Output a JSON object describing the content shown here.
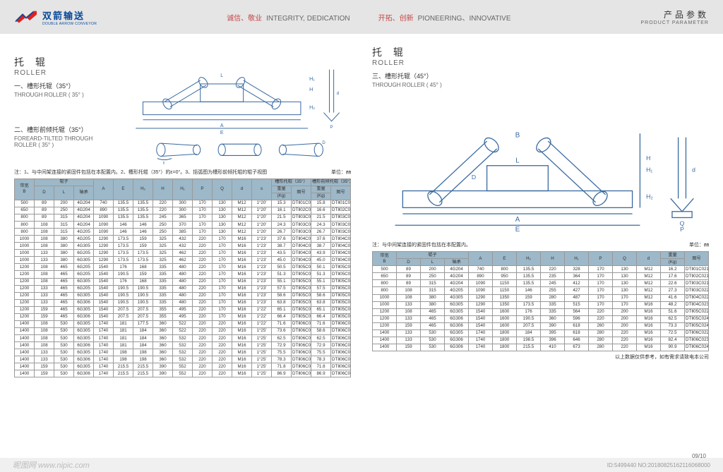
{
  "header": {
    "logo_cn": "双箭输送",
    "logo_en": "DOUBLE ARROW CONVEYOR",
    "slogan1_cn": "诚信、敬业",
    "slogan1_en": "INTEGRITY, DEDICATION",
    "slogan2_cn": "开拓、创新",
    "slogan2_en": "PIONEERING、INNOVATIVE",
    "param_cn": "产品参数",
    "param_en": "PRODUCT PARAMETER"
  },
  "left": {
    "title_cn": "托 辊",
    "title_en": "ROLLER",
    "sub1_cn": "一、槽形托辊（35°）",
    "sub1_en": "THROUGH ROLLER ( 35° )",
    "sub2_cn": "二、槽形前倾托辊（35°）",
    "sub2_en": "FOREARD-TILTED THROUGH ROLLER ( 35° )",
    "note": "注：1、与中间架连接的紧固件包括在本配置内。2、槽形托辊（35°）的ε=0°。3、括弧图为槽形前倾托辊的辊子视图",
    "unit": "单位：㎜",
    "table": {
      "header1": [
        "带宽",
        "辊子",
        "",
        "",
        "",
        "",
        "",
        "",
        "",
        "",
        "",
        "",
        "槽形托辊（35°）",
        "",
        "槽形前倾托辊（35°）",
        ""
      ],
      "header2": [
        "B",
        "D",
        "L",
        "轴承",
        "A",
        "E",
        "H₂",
        "H",
        "H₁",
        "P",
        "Q",
        "d",
        "s",
        "重量",
        "图号",
        "重量",
        "图号"
      ],
      "header3": [
        "",
        "",
        "",
        "",
        "",
        "",
        "",
        "",
        "",
        "",
        "",
        "",
        "",
        "(Kg)",
        "",
        "(Kg)",
        ""
      ],
      "colspan1": [
        1,
        3,
        1,
        1,
        1,
        1,
        1,
        1,
        1,
        1,
        1,
        1,
        2,
        2
      ],
      "rows": [
        [
          "500",
          "89",
          "200",
          "4G204",
          "740",
          "135.5",
          "135.5",
          "220",
          "300",
          "170",
          "130",
          "M12",
          "1°20′",
          "15.3",
          "DTⅡ01C0111",
          "15.8",
          "DTⅡ01C0311"
        ],
        [
          "650",
          "89",
          "250",
          "4G204",
          "890",
          "135.5",
          "135.5",
          "220",
          "300",
          "170",
          "130",
          "M12",
          "1°20′",
          "16.1",
          "DTⅡ02C0111",
          "16.6",
          "DTⅡ02C0311"
        ],
        [
          "800",
          "89",
          "315",
          "4G204",
          "1090",
          "135.5",
          "135.5",
          "245",
          "365",
          "170",
          "130",
          "M12",
          "1°20′",
          "21.5",
          "DTⅡ03C0121",
          "21.5",
          "DTⅡ03C0311"
        ],
        [
          "800",
          "108",
          "315",
          "4G204",
          "1090",
          "146",
          "146",
          "250",
          "370",
          "170",
          "130",
          "M12",
          "1°20′",
          "24.3",
          "DTⅡ03C0122",
          "24.3",
          "DTⅡ03C0321"
        ],
        [
          "800",
          "108",
          "315",
          "4G205",
          "1090",
          "146",
          "146",
          "250",
          "385",
          "170",
          "130",
          "M12",
          "1°20′",
          "26.7",
          "DTⅡ03C0122",
          "26.7",
          "DTⅡ03C0322"
        ],
        [
          "1000",
          "108",
          "380",
          "4G205",
          "1290",
          "173.5",
          "159",
          "325",
          "432",
          "220",
          "170",
          "M16",
          "1°23′",
          "37.6",
          "DTⅡ04C0122",
          "37.6",
          "DTⅡ04C0322"
        ],
        [
          "1000",
          "108",
          "380",
          "4G305",
          "1290",
          "173.5",
          "159",
          "325",
          "432",
          "220",
          "170",
          "M16",
          "1°23′",
          "38.7",
          "DTⅡ04C0123",
          "38.7",
          "DTⅡ04C0323"
        ],
        [
          "1000",
          "133",
          "380",
          "6G205",
          "1290",
          "173.5",
          "173.5",
          "325",
          "462",
          "220",
          "170",
          "M16",
          "1°23′",
          "43.5",
          "DTⅡ04C0132",
          "43.9",
          "DTⅡ04C0332"
        ],
        [
          "1000",
          "133",
          "380",
          "6G305",
          "1290",
          "173.5",
          "173.5",
          "325",
          "462",
          "220",
          "170",
          "M16",
          "1°23′",
          "45.0",
          "DTⅡ04C0133",
          "45.0",
          "DTⅡ04C0333"
        ],
        [
          "1200",
          "108",
          "465",
          "6G205",
          "1540",
          "176",
          "168",
          "335",
          "480",
          "220",
          "170",
          "M16",
          "1°23′",
          "50.5",
          "DTⅡ05C0122",
          "50.1",
          "DTⅡ05C0322"
        ],
        [
          "1200",
          "108",
          "465",
          "6G205",
          "1540",
          "190.5",
          "159",
          "335",
          "480",
          "220",
          "170",
          "M16",
          "1°23′",
          "51.3",
          "DTⅡ05C0123",
          "51.3",
          "DTⅡ05C0323"
        ],
        [
          "1200",
          "108",
          "465",
          "6G305",
          "1540",
          "176",
          "168",
          "335",
          "480",
          "220",
          "170",
          "M16",
          "1°23′",
          "55.1",
          "DTⅡ05C0124",
          "55.1",
          "DTⅡ05C0323"
        ],
        [
          "1200",
          "133",
          "465",
          "6G205",
          "1540",
          "190.5",
          "190.5",
          "335",
          "480",
          "220",
          "170",
          "M16",
          "1°23′",
          "57.5",
          "DTⅡ05C0133",
          "57.5",
          "DTⅡ05C0332"
        ],
        [
          "1200",
          "133",
          "465",
          "6G305",
          "1540",
          "190.5",
          "190.5",
          "335",
          "480",
          "220",
          "170",
          "M16",
          "1°23′",
          "58.6",
          "DTⅡ05C0134",
          "58.6",
          "DTⅡ05C0333"
        ],
        [
          "1200",
          "133",
          "465",
          "6G306",
          "1540",
          "190.5",
          "190.5",
          "335",
          "480",
          "220",
          "170",
          "M16",
          "1°23′",
          "63.8",
          "DTⅡ05C0134",
          "63.8",
          "DTⅡ05C0333"
        ],
        [
          "1200",
          "159",
          "465",
          "6G305",
          "1540",
          "207.5",
          "207.5",
          "355",
          "495",
          "220",
          "170",
          "M16",
          "1°22′",
          "65.1",
          "DTⅡ05C0143",
          "65.1",
          "DTⅡ05C0343"
        ],
        [
          "1200",
          "159",
          "465",
          "6G306",
          "1540",
          "207.5",
          "207.5",
          "355",
          "495",
          "220",
          "170",
          "M16",
          "1°22′",
          "66.4",
          "DTⅡ05C0143",
          "66.4",
          "DTⅡ05C0343"
        ],
        [
          "1400",
          "108",
          "530",
          "6G305",
          "1740",
          "181",
          "177.5",
          "360",
          "522",
          "220",
          "220",
          "M16",
          "1°22′",
          "71.6",
          "DTⅡ06C0124",
          "71.6",
          "DTⅡ06C0323"
        ],
        [
          "1400",
          "108",
          "530",
          "6G305",
          "1740",
          "181",
          "184",
          "360",
          "522",
          "220",
          "220",
          "M16",
          "1°25′",
          "73.6",
          "DTⅡ06C0125",
          "58.6",
          "DTⅡ06C0323"
        ],
        [
          "1400",
          "108",
          "530",
          "6G305",
          "1740",
          "181",
          "184",
          "360",
          "532",
          "220",
          "220",
          "M16",
          "1°25′",
          "62.5",
          "DTⅡ06C0124",
          "62.5",
          "DTⅡ06C0323"
        ],
        [
          "1400",
          "108",
          "530",
          "6G306",
          "1740",
          "181",
          "184",
          "360",
          "532",
          "220",
          "220",
          "M16",
          "1°25′",
          "72.9",
          "DTⅡ06C0125",
          "72.9",
          "DTⅡ06C0323"
        ],
        [
          "1400",
          "133",
          "530",
          "6G305",
          "1740",
          "198",
          "198",
          "360",
          "532",
          "220",
          "220",
          "M16",
          "1°25′",
          "75.5",
          "DTⅡ06C0133",
          "75.5",
          "DTⅡ06C0334"
        ],
        [
          "1400",
          "133",
          "530",
          "6G306",
          "1740",
          "198",
          "198",
          "360",
          "532",
          "220",
          "220",
          "M16",
          "1°25′",
          "78.3",
          "DTⅡ06C0134",
          "78.3",
          "DTⅡ06C0334"
        ],
        [
          "1400",
          "159",
          "530",
          "6G305",
          "1740",
          "215.5",
          "215.5",
          "390",
          "552",
          "220",
          "220",
          "M16",
          "1°25′",
          "71.8",
          "DTⅡ06C0143",
          "71.8",
          "DTⅡ06C0344"
        ],
        [
          "1400",
          "159",
          "530",
          "6G306",
          "1740",
          "215.5",
          "215.5",
          "390",
          "552",
          "220",
          "220",
          "M16",
          "1°25′",
          "86.9",
          "DTⅡ06C0144",
          "86.9",
          "DTⅡ06C0344"
        ]
      ]
    }
  },
  "right": {
    "title_cn": "托 辊",
    "title_en": "ROLLER",
    "sub1_cn": "三、槽形托辊（45°）",
    "sub1_en": "THROUGH ROLLER ( 45° )",
    "note": "注：与中间架连接的紧固件包括在本配置内。",
    "unit": "单位：㎜",
    "footnote": "以上数据仅供参考，如有需求请致电本公司",
    "table": {
      "header1": [
        "带宽",
        "辊子",
        "",
        "",
        "",
        "",
        "",
        "",
        "",
        "",
        "",
        "",
        "",
        ""
      ],
      "header2": [
        "B",
        "D",
        "L",
        "轴承",
        "A",
        "E",
        "H₂",
        "H",
        "H₁",
        "P",
        "Q",
        "d",
        "重量",
        "图号"
      ],
      "header3": [
        "",
        "",
        "",
        "",
        "",
        "",
        "",
        "",
        "",
        "",
        "",
        "",
        "(Kg)",
        ""
      ],
      "rows": [
        [
          "500",
          "89",
          "200",
          "4G204",
          "740",
          "800",
          "135.5",
          "220",
          "328",
          "170",
          "130",
          "M12",
          "16.2",
          "DTⅡ01C0211"
        ],
        [
          "650",
          "89",
          "250",
          "4G204",
          "890",
          "950",
          "135.5",
          "235",
          "364",
          "170",
          "130",
          "M12",
          "17.6",
          "DTⅡ02C0211"
        ],
        [
          "800",
          "89",
          "315",
          "4G204",
          "1090",
          "1150",
          "135.5",
          "245",
          "412",
          "170",
          "130",
          "M12",
          "22.6",
          "DTⅡ03C0211"
        ],
        [
          "800",
          "108",
          "315",
          "4G205",
          "1090",
          "1150",
          "146",
          "255",
          "427",
          "170",
          "130",
          "M12",
          "27.3",
          "DTⅡ03C0222"
        ],
        [
          "1000",
          "108",
          "380",
          "4G305",
          "1290",
          "1350",
          "159",
          "280",
          "487",
          "170",
          "170",
          "M12",
          "41.6",
          "DTⅡ04C0223"
        ],
        [
          "1000",
          "133",
          "380",
          "6G305",
          "1290",
          "1350",
          "173.5",
          "335",
          "515",
          "170",
          "170",
          "M16",
          "48.2",
          "DTⅡ04C0233"
        ],
        [
          "1200",
          "108",
          "465",
          "6G305",
          "1540",
          "1600",
          "176",
          "335",
          "564",
          "220",
          "200",
          "M16",
          "51.6",
          "DTⅡ05C0223"
        ],
        [
          "1200",
          "133",
          "465",
          "6G306",
          "1540",
          "1600",
          "190.5",
          "360",
          "596",
          "220",
          "200",
          "M16",
          "62.5",
          "DTⅡ05C0243"
        ],
        [
          "1200",
          "159",
          "465",
          "6G306",
          "1540",
          "1600",
          "207.5",
          "390",
          "618",
          "260",
          "200",
          "M16",
          "73.3",
          "DTⅡ05C0244"
        ],
        [
          "1400",
          "133",
          "530",
          "6G305",
          "1740",
          "1800",
          "184",
          "395",
          "618",
          "280",
          "220",
          "M16",
          "72.5",
          "DTⅡ06C0223"
        ],
        [
          "1400",
          "133",
          "530",
          "6G306",
          "1740",
          "1800",
          "198.5",
          "396",
          "646",
          "280",
          "220",
          "M16",
          "82.4",
          "DTⅡ06C0234"
        ],
        [
          "1400",
          "159",
          "530",
          "6G306",
          "1740",
          "1800",
          "215.5",
          "410",
          "673",
          "280",
          "220",
          "M16",
          "90.9",
          "DTⅡ06C0244"
        ]
      ]
    }
  },
  "footer": {
    "watermark": "昵图网 www.nipic.com",
    "id": "ID:5499440 NO:20180825162116068000",
    "page": "09/10"
  },
  "colors": {
    "header_bg": "#e5e5e5",
    "diagram_stroke": "#3a6aa0",
    "table_header_bg": "#9db8c8",
    "accent_red": "#c84646",
    "logo_blue": "#0a4a9a"
  }
}
